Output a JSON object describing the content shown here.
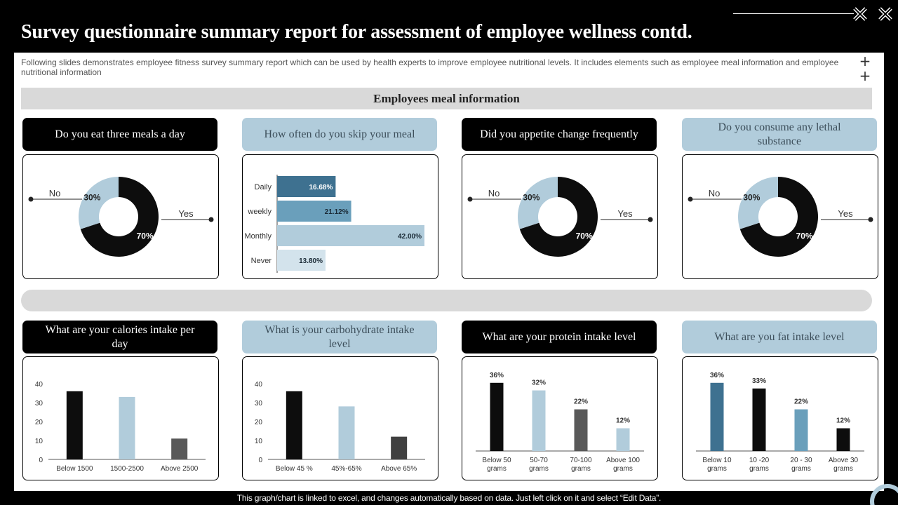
{
  "title": "Survey questionnaire summary report for assessment of employee wellness contd.",
  "description": "Following slides demonstrates employee fitness survey summary report which can be used by health experts to improve employee nutritional levels. It includes elements such as employee meal information and employee nutritional information",
  "section_title": "Employees meal information",
  "footer": "This graph/chart is linked to excel, and changes automatically based on data. Just left click on it and select “Edit Data”.",
  "colors": {
    "black": "#0d0d0d",
    "light_blue": "#b1ccdb",
    "mid_blue": "#6a9fbb",
    "dark_blue": "#3e7190",
    "grey": "#595959",
    "dark_grey": "#404040"
  },
  "questions": [
    "Do you eat three meals a day",
    "How often do you skip your meal",
    "Did  you appetite change frequently",
    "Do you consume any lethal substance",
    "What are your calories intake per day",
    "What is your carbohydrate intake level",
    "What are your protein intake level",
    "What are you fat intake level"
  ],
  "chart_data": [
    {
      "type": "pie",
      "donut": true,
      "title": "Do you eat three meals a day",
      "slices": [
        {
          "label": "Yes",
          "value": 70,
          "display": "70%"
        },
        {
          "label": "No",
          "value": 30,
          "display": "30%"
        }
      ]
    },
    {
      "type": "bar",
      "orientation": "horizontal",
      "title": "How often do you skip your meal",
      "categories": [
        "Daily",
        "weekly",
        "Monthly",
        "Never"
      ],
      "values": [
        16.68,
        21.12,
        42.0,
        13.8
      ],
      "labels": [
        "16.68%",
        "21.12%",
        "42.00%",
        "13.80%"
      ]
    },
    {
      "type": "pie",
      "donut": true,
      "title": "Did  you appetite change frequently",
      "slices": [
        {
          "label": "Yes",
          "value": 70,
          "display": "70%"
        },
        {
          "label": "No",
          "value": 30,
          "display": "30%"
        }
      ]
    },
    {
      "type": "pie",
      "donut": true,
      "title": "Do you consume any lethal substance",
      "slices": [
        {
          "label": "Yes",
          "value": 70,
          "display": "70%"
        },
        {
          "label": "No",
          "value": 30,
          "display": "30%"
        }
      ]
    },
    {
      "type": "bar",
      "title": "What are your calories intake per day",
      "categories": [
        "Below 1500",
        "1500-2500",
        "Above 2500"
      ],
      "values": [
        36,
        33,
        11
      ],
      "ylim": [
        0,
        40
      ],
      "yticks": [
        "0",
        "10",
        "20",
        "30",
        "40"
      ]
    },
    {
      "type": "bar",
      "title": "What is your carbohydrate intake level",
      "categories": [
        "Below 45 %",
        "45%-65%",
        "Above 65%"
      ],
      "values": [
        36,
        28,
        12
      ],
      "ylim": [
        0,
        40
      ],
      "yticks": [
        "0",
        "10",
        "20",
        "30",
        "40"
      ]
    },
    {
      "type": "bar",
      "title": "What are your protein intake level",
      "categories": [
        "Below 50 grams",
        "50-70 grams",
        "70-100 grams",
        "Above 100 grams"
      ],
      "values": [
        36,
        32,
        22,
        12
      ],
      "labels": [
        "36%",
        "32%",
        "22%",
        "12%"
      ],
      "ylim": [
        0,
        40
      ]
    },
    {
      "type": "bar",
      "title": "What are you fat intake level",
      "categories": [
        "Below 10 grams",
        "10 -20 grams",
        "20 - 30 grams",
        "Above 30 grams"
      ],
      "values": [
        36,
        33,
        22,
        12
      ],
      "labels": [
        "36%",
        "33%",
        "22%",
        "12%"
      ],
      "ylim": [
        0,
        40
      ]
    }
  ]
}
